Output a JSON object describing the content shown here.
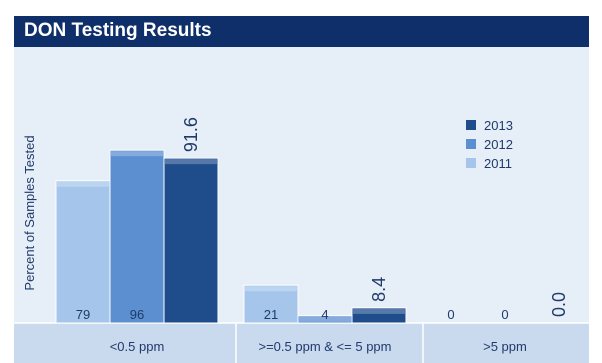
{
  "chart_data": {
    "type": "bar",
    "title": "DON Testing Results",
    "ylabel": "Percent of Samples Tested",
    "xlabel": "",
    "categories": [
      "<0.5 ppm",
      ">=0.5 ppm & <= 5 ppm",
      ">5 ppm"
    ],
    "series": [
      {
        "name": "2011",
        "values": [
          79,
          21,
          0
        ],
        "color": "#a5c6ea"
      },
      {
        "name": "2012",
        "values": [
          96,
          4,
          0
        ],
        "color": "#5b8fd0"
      },
      {
        "name": "2013",
        "values": [
          91.6,
          8.4,
          0.0
        ],
        "color": "#1f4d8c"
      }
    ],
    "data_labels": [
      [
        "79",
        "21",
        "0"
      ],
      [
        "96",
        "4",
        "0"
      ],
      [
        "91.6",
        "8.4",
        "0.0"
      ]
    ],
    "ylim": [
      0,
      100
    ],
    "legend_position": "top-right",
    "legend_order": [
      "2013",
      "2012",
      "2011"
    ],
    "grid": false
  },
  "colors": {
    "header_bg": "#0e2f69",
    "plot_bg": "#e6eef7",
    "axis_band": "#c9d9ee",
    "text": "#1f3a6b"
  }
}
